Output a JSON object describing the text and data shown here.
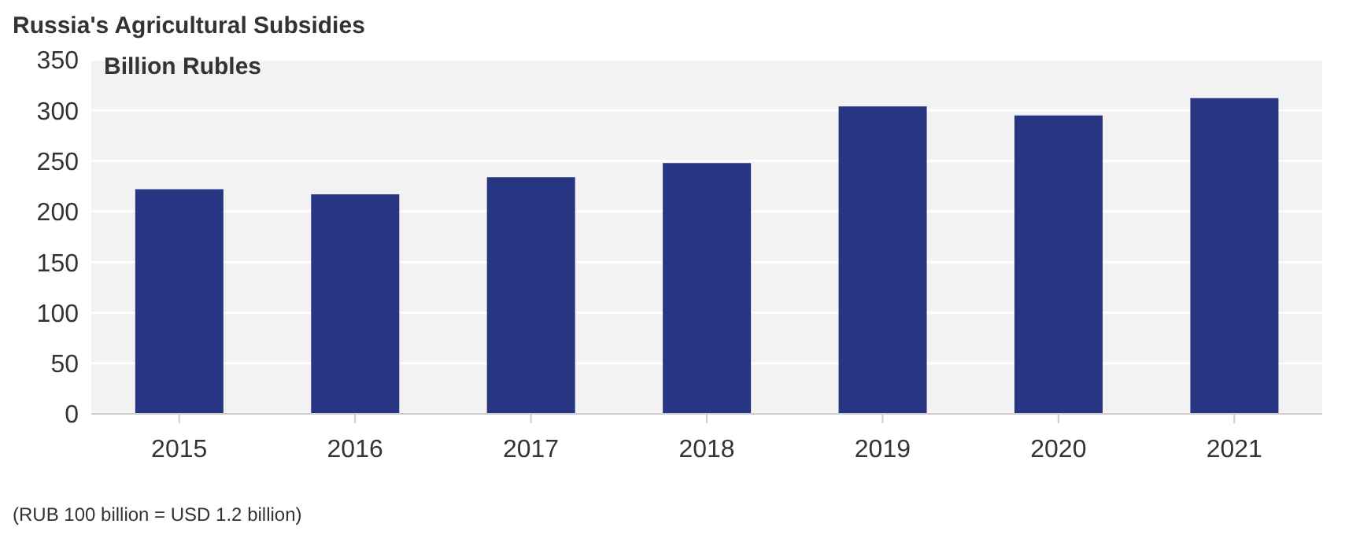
{
  "chart_data": {
    "type": "bar",
    "title": "Russia's Agricultural Subsidies",
    "subtitle": "Billion Rubles",
    "categories": [
      "2015",
      "2016",
      "2017",
      "2018",
      "2019",
      "2020",
      "2021"
    ],
    "values": [
      222,
      217,
      234,
      248,
      304,
      295,
      312
    ],
    "color": "#283583",
    "ylim": [
      0,
      350
    ],
    "yticks": [
      0,
      50,
      100,
      150,
      200,
      250,
      300,
      350
    ],
    "grid": "y",
    "annotations": [
      "(RUB 100 billion = USD 1.2 billion)"
    ]
  }
}
